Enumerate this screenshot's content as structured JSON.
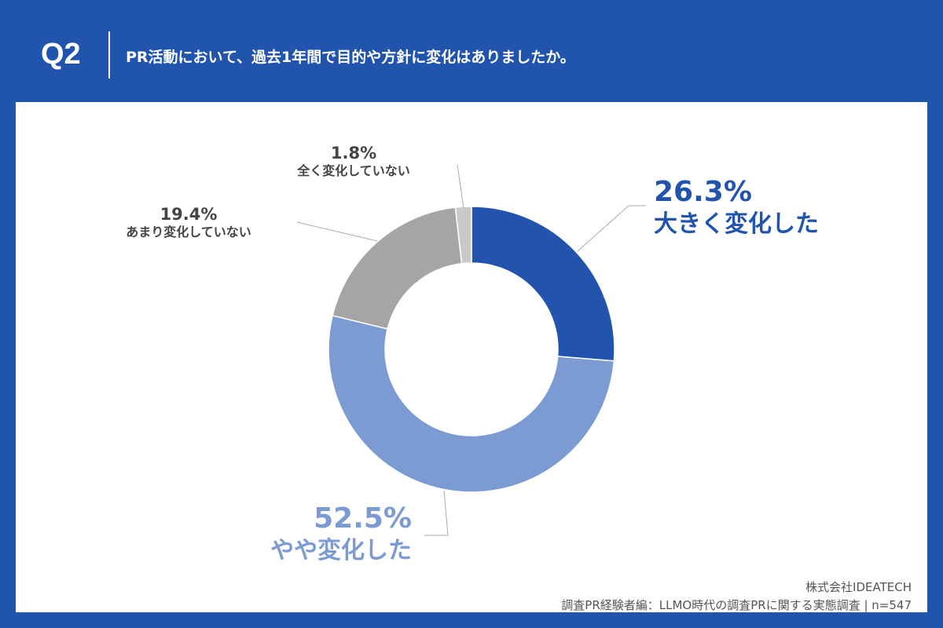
{
  "header": {
    "question": "Q2",
    "title": "PR活動において、過去1年間で目的や方針に変化はありましたか。"
  },
  "footer": {
    "company": "株式会社IDEATECH",
    "source": "調査PR経験者編：LLMO時代の調査PRに関する実態調査 | n=547"
  },
  "chart_data": {
    "type": "pie",
    "donut": true,
    "categories": [
      "大きく変化した",
      "やや変化した",
      "あまり変化していない",
      "全く変化していない"
    ],
    "values": [
      26.3,
      52.5,
      19.4,
      1.8
    ],
    "value_labels": [
      "26.3%",
      "52.5%",
      "19.4%",
      "1.8%"
    ],
    "colors": [
      "#2254ae",
      "#7b9bd2",
      "#a5a5a5",
      "#c9c9c9"
    ]
  }
}
